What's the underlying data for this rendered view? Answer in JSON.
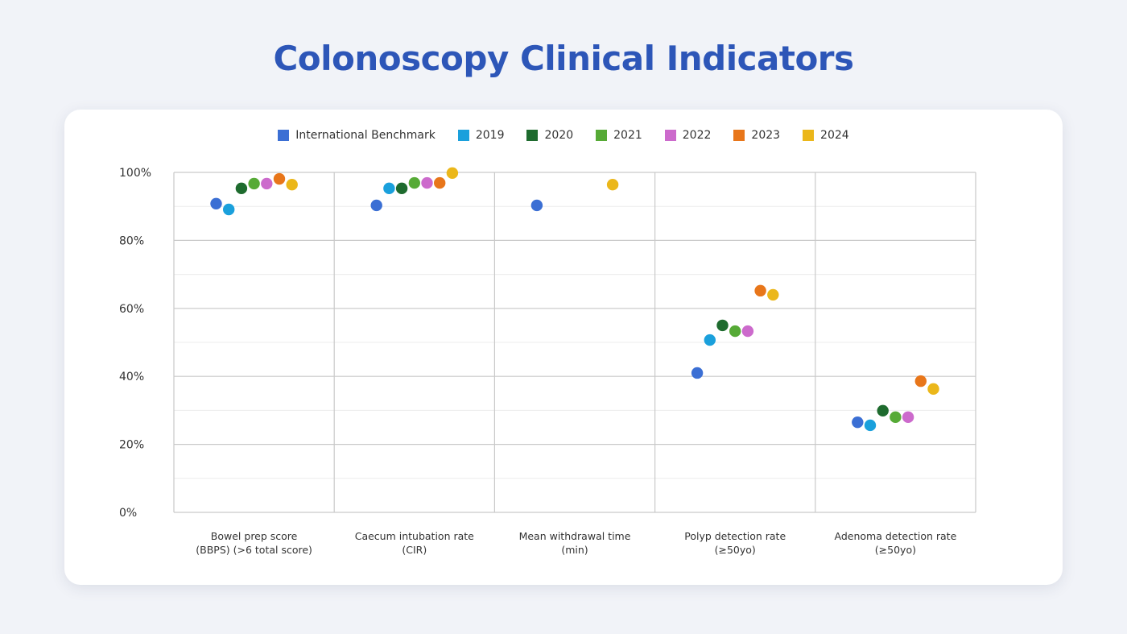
{
  "title": "Colonoscopy Clinical Indicators",
  "chart_data": {
    "type": "scatter",
    "title": "Colonoscopy Clinical Indicators",
    "xlabel": "",
    "ylabel": "",
    "ylim": [
      0,
      100
    ],
    "yticks": [
      0,
      20,
      40,
      60,
      80,
      100
    ],
    "ytick_labels": [
      "0%",
      "20%",
      "40%",
      "60%",
      "80%",
      "100%"
    ],
    "grid": true,
    "legend_position": "top-center",
    "categories": [
      [
        "Bowel prep score",
        "(BBPS) (>6 total score)"
      ],
      [
        "Caecum intubation rate",
        "(CIR)"
      ],
      [
        "Mean withdrawal time",
        "(min)"
      ],
      [
        "Polyp detection rate",
        "(≥50yo)"
      ],
      [
        "Adenoma detection rate",
        "(≥50yo)"
      ]
    ],
    "series": [
      {
        "name": "International Benchmark",
        "color": "#3b6fd4",
        "values": [
          90.8,
          90.3,
          90.3,
          41,
          26.5
        ]
      },
      {
        "name": "2019",
        "color": "#1aa0dc",
        "values": [
          89.1,
          95.3,
          null,
          50.7,
          25.6
        ]
      },
      {
        "name": "2020",
        "color": "#1e6b2e",
        "values": [
          95.3,
          95.3,
          null,
          55,
          29.9
        ]
      },
      {
        "name": "2021",
        "color": "#56aa36",
        "values": [
          96.7,
          96.9,
          null,
          53.3,
          28
        ]
      },
      {
        "name": "2022",
        "color": "#cc6acc",
        "values": [
          96.7,
          96.9,
          null,
          53.3,
          28
        ]
      },
      {
        "name": "2023",
        "color": "#e8761a",
        "values": [
          98.1,
          96.9,
          null,
          65.2,
          38.6
        ]
      },
      {
        "name": "2024",
        "color": "#ebb71a",
        "values": [
          96.4,
          99.8,
          96.4,
          64,
          36.3
        ]
      }
    ]
  }
}
